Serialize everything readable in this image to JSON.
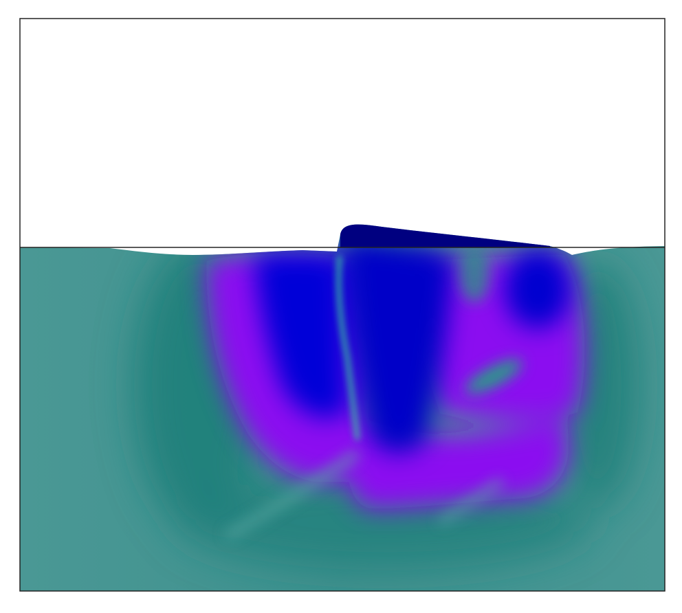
{
  "figure": {
    "subject": "fluid-surface-simulation",
    "colors": {
      "background": "#ffffff",
      "frame": "#222222",
      "fluid_base": "#3f918e",
      "fluid_dark_green": "#1f7f7a",
      "violet": "#8b10f0",
      "blue": "#0000d8",
      "navy": "#000080",
      "vortex_streak": "#36c99a"
    }
  }
}
